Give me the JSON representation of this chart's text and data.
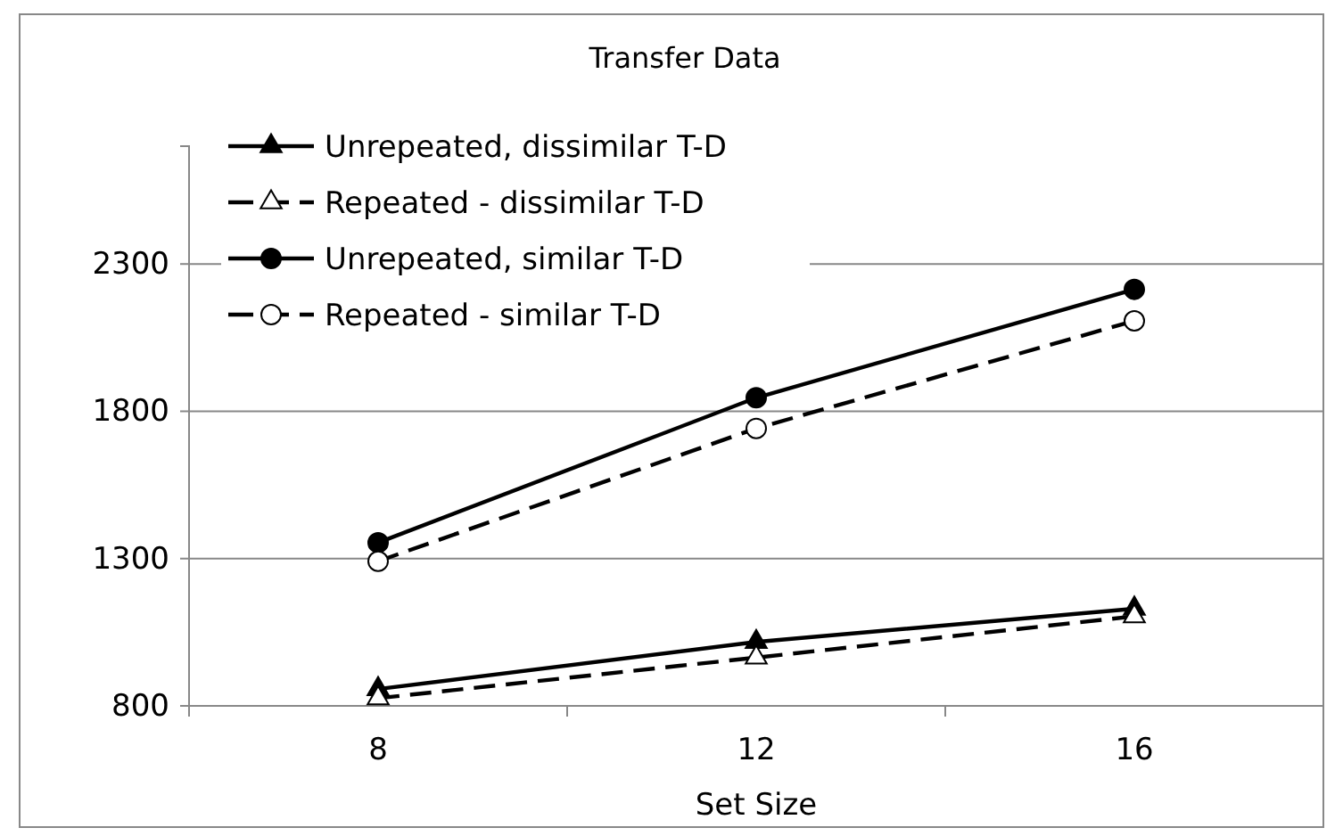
{
  "chart_data": {
    "type": "line",
    "title": "Transfer Data",
    "xlabel": "Set Size",
    "categories": [
      "8",
      "12",
      "16"
    ],
    "series": [
      {
        "name": "Unrepeated, dissimilar T-D",
        "color": "#000000",
        "marker": "triangle",
        "line_style": "solid",
        "values": [
          857,
          1017,
          1130
        ]
      },
      {
        "name": "Repeated - dissimilar T-D",
        "color": "#000000",
        "marker": "triangle",
        "line_style": "dashed",
        "values": [
          826,
          964,
          1104
        ]
      },
      {
        "name": "Unrepeated, similar T-D",
        "color": "#000000",
        "marker": "circle",
        "line_style": "solid",
        "values": [
          1354,
          1846,
          2214
        ]
      },
      {
        "name": "Repeated - similar T-D",
        "color": "#000000",
        "marker": "circle",
        "line_style": "dashed",
        "values": [
          1291,
          1742,
          2107
        ]
      }
    ],
    "ylim": [
      800,
      2700
    ],
    "yticks": [
      800,
      1300,
      1800,
      2300
    ],
    "grid": "y",
    "legend": "top left"
  }
}
